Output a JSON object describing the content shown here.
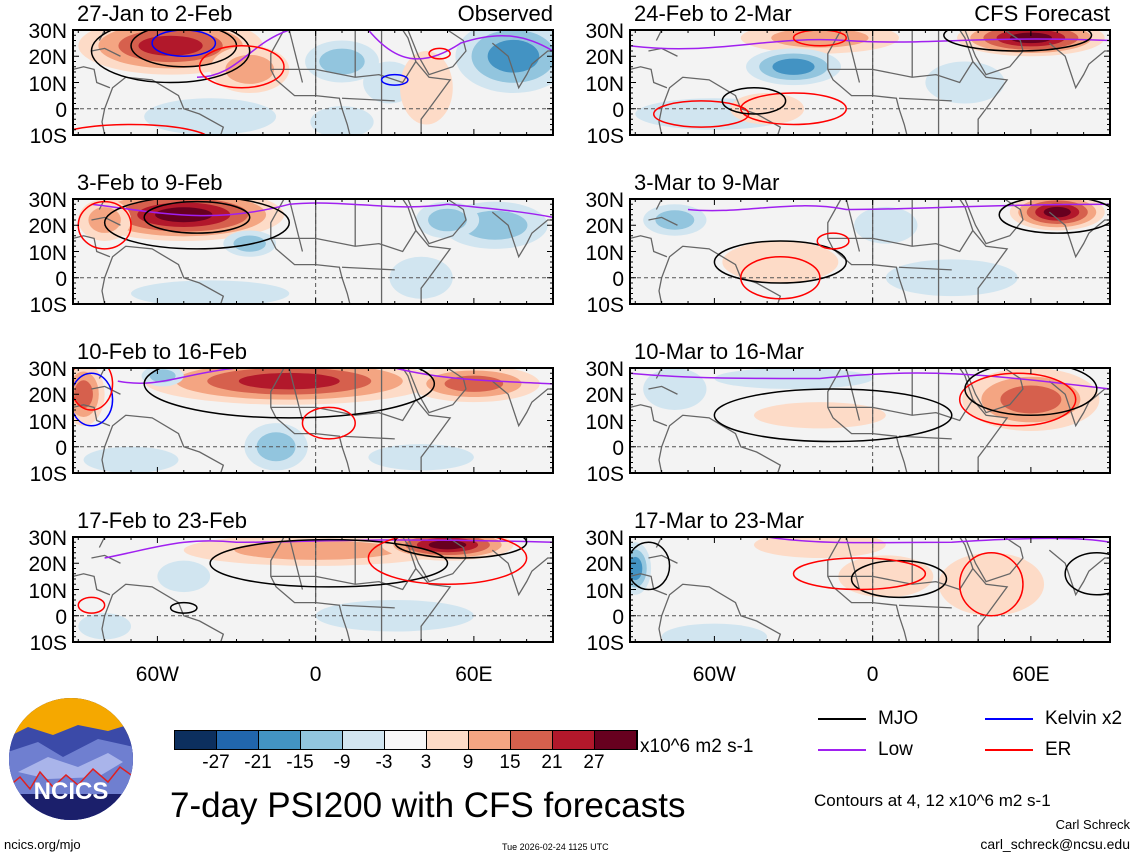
{
  "panels": [
    {
      "title": "27-Jan to 2-Feb",
      "label": "Observed"
    },
    {
      "title": "3-Feb to 9-Feb",
      "label": ""
    },
    {
      "title": "10-Feb to 16-Feb",
      "label": ""
    },
    {
      "title": "17-Feb to 23-Feb",
      "label": ""
    },
    {
      "title": "24-Feb to 2-Mar",
      "label": "CFS Forecast"
    },
    {
      "title": "3-Mar to 9-Mar",
      "label": ""
    },
    {
      "title": "10-Mar to 16-Mar",
      "label": ""
    },
    {
      "title": "17-Mar to 23-Mar",
      "label": ""
    }
  ],
  "lat_labels": [
    "30N",
    "20N",
    "10N",
    "0",
    "10S"
  ],
  "lon_labels": [
    "60W",
    "0",
    "60E"
  ],
  "colorbar": {
    "colors": [
      "#0c2f5e",
      "#2166ac",
      "#4393c3",
      "#92c5de",
      "#d1e5f0",
      "#f7f7f7",
      "#fddbc7",
      "#f4a582",
      "#d6604d",
      "#b2182b",
      "#67001f"
    ],
    "ticks": [
      "-27",
      "-21",
      "-15",
      "-9",
      "-3",
      "3",
      "9",
      "15",
      "21",
      "27"
    ],
    "units": "x10^6 m2 s-1"
  },
  "legend": [
    {
      "name": "MJO",
      "color": "#000000"
    },
    {
      "name": "Kelvin x2",
      "color": "#0000ff"
    },
    {
      "name": "Low",
      "color": "#a020f0"
    },
    {
      "name": "ER",
      "color": "#ff0000"
    }
  ],
  "title": "7-day PSI200 with CFS forecasts",
  "contours_note": "Contours at 4, 12 x10^6 m2 s-1",
  "author": "Carl Schreck",
  "email": "carl_schreck@ncsu.edu",
  "url": "ncics.org/mjo",
  "timestamp": "Tue 2026-02-24 1125 UTC",
  "logo_text": "NCICS"
}
